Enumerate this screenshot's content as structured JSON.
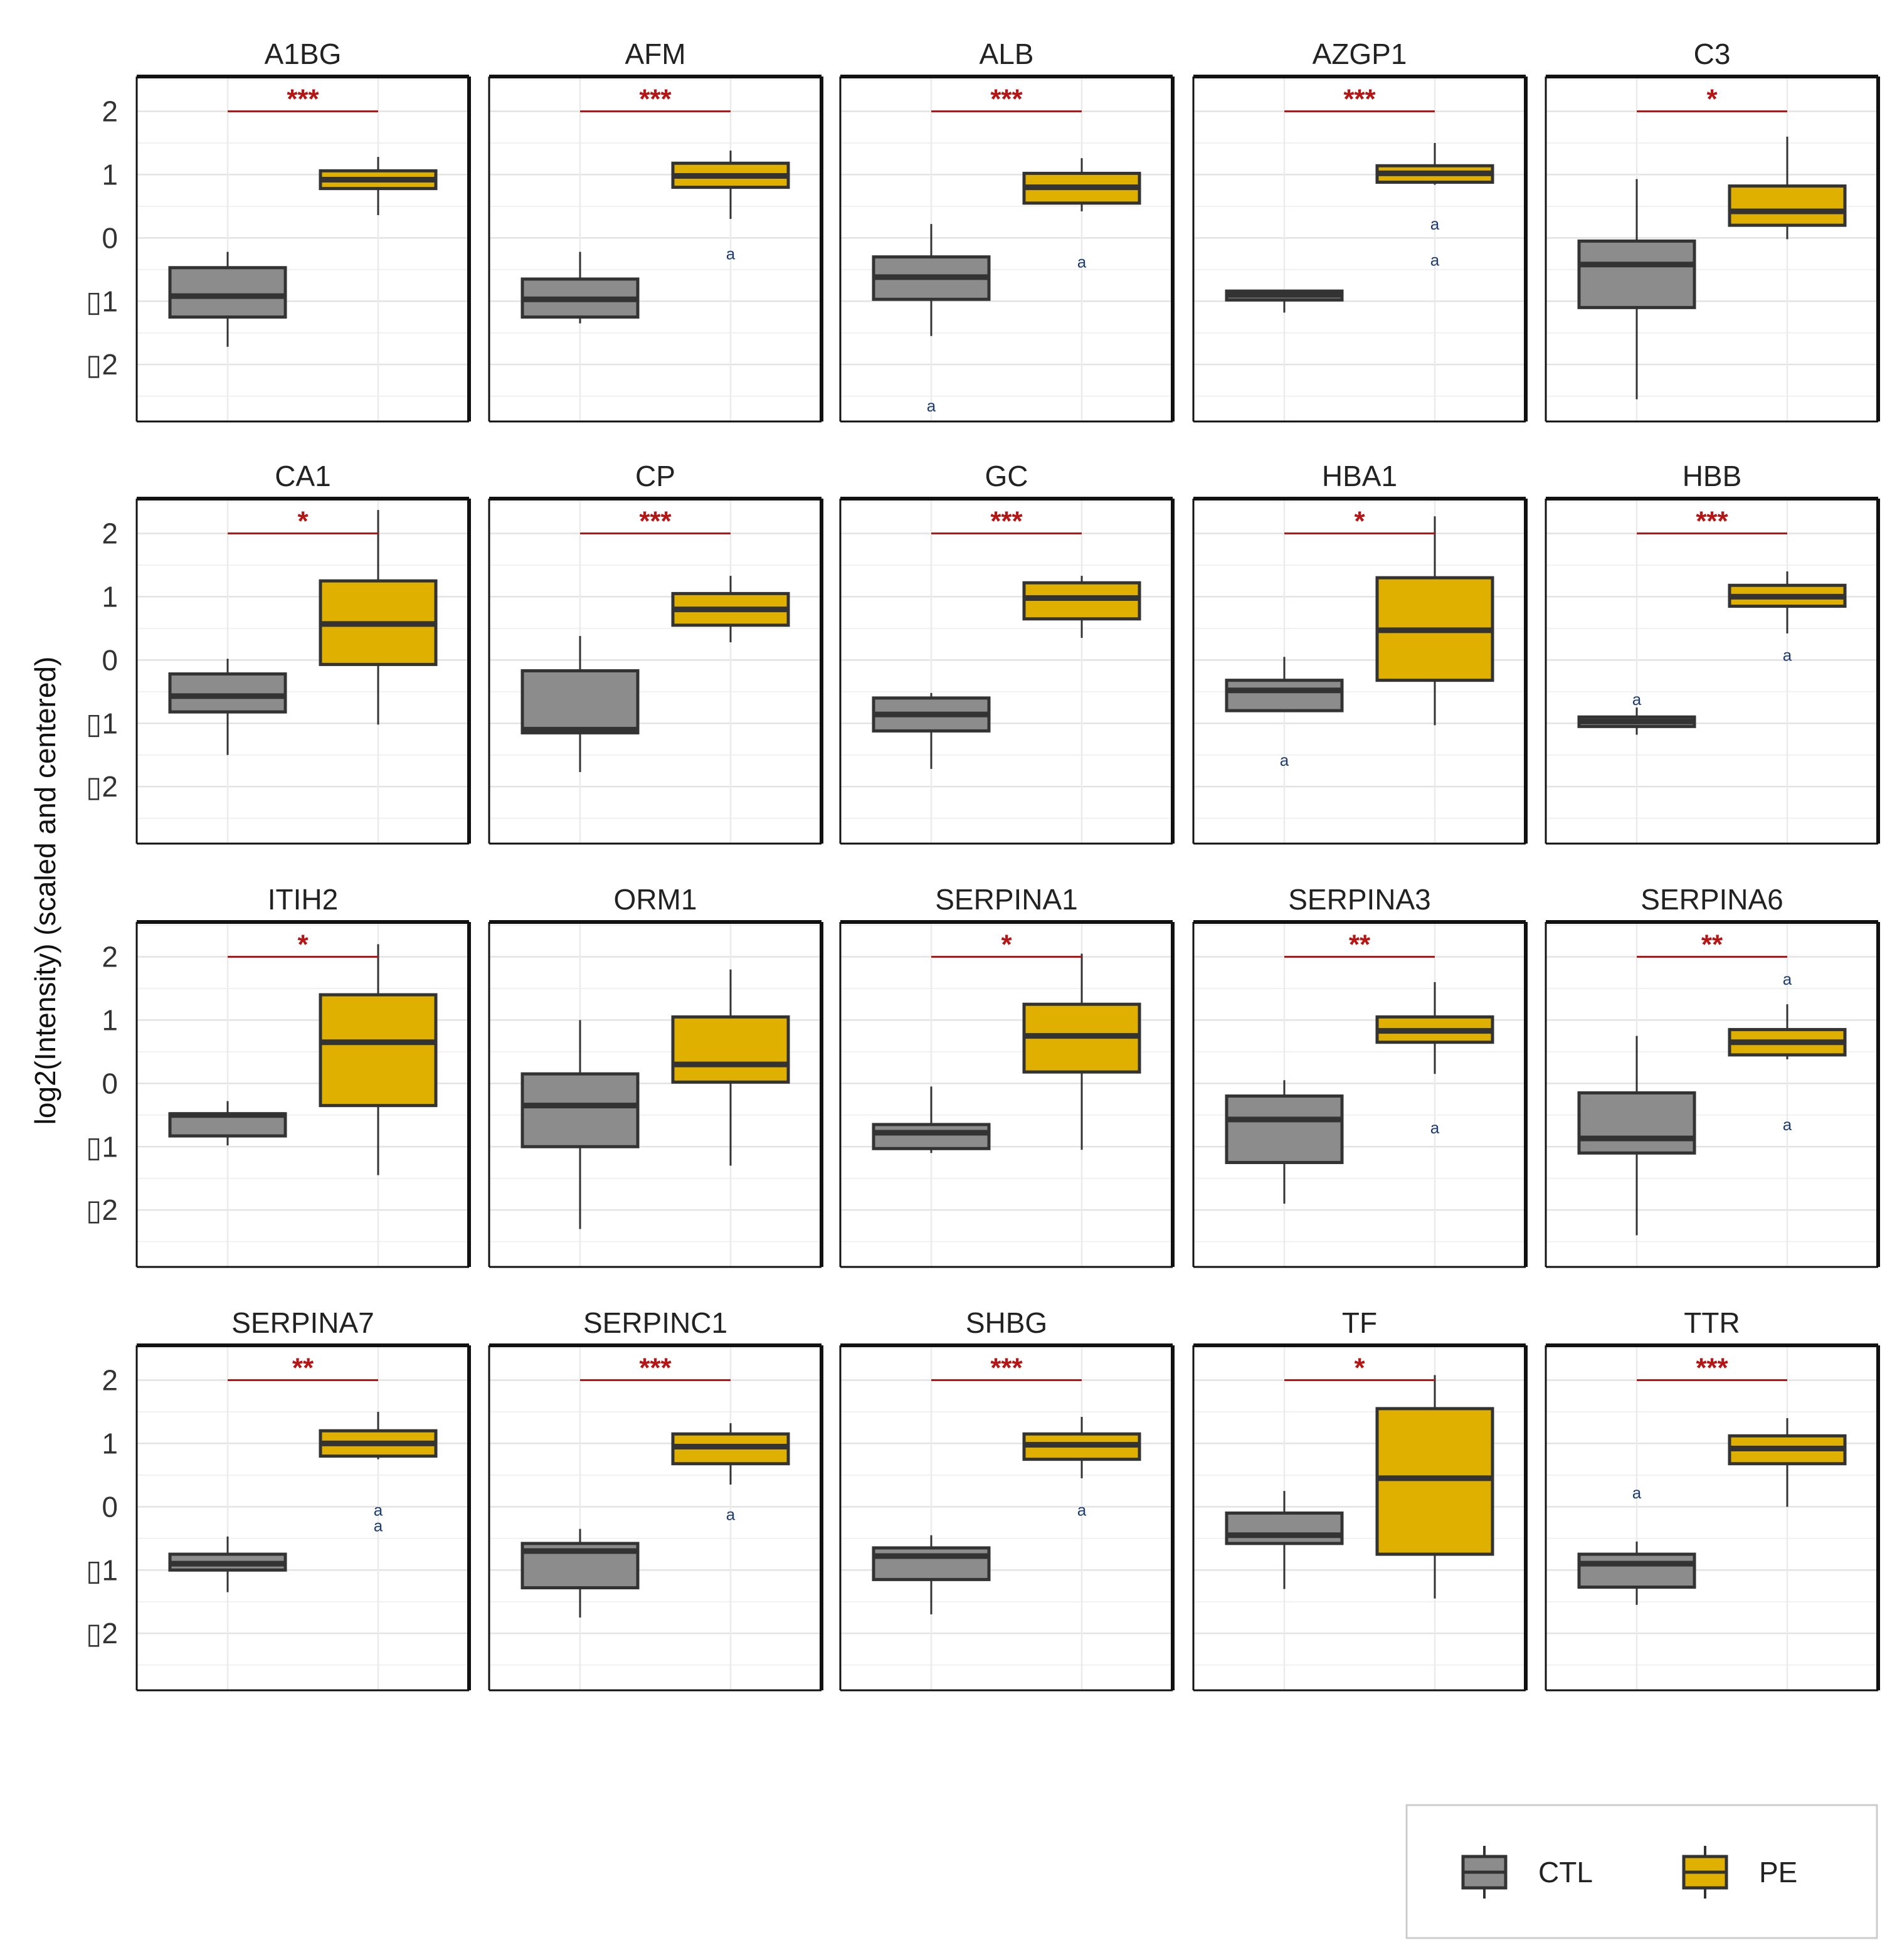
{
  "chart_data": {
    "type": "boxplot",
    "layout": "facet grid 4 rows x 5 columns",
    "ylabel": "log2(Intensity) (scaled and centered)",
    "y_ticks": [
      {
        "value": 2,
        "label": "2"
      },
      {
        "value": 1,
        "label": "1"
      },
      {
        "value": 0,
        "label": "0"
      },
      {
        "value": -1,
        "label": "▯1"
      },
      {
        "value": -2,
        "label": "▯2"
      }
    ],
    "ylim": [
      -2.9,
      2.55
    ],
    "groups": [
      "CTL",
      "PE"
    ],
    "colors": {
      "CTL": "#8c8c8c",
      "PE": "#e0b000",
      "sig": "#b51515",
      "outline": "#333333",
      "outlier": "#1f3d6e"
    },
    "outlier_glyph": "a",
    "legend": {
      "position": "bottom-right",
      "items": [
        {
          "group": "CTL",
          "label": "CTL"
        },
        {
          "group": "PE",
          "label": "PE"
        }
      ]
    },
    "panels": [
      {
        "protein": "A1BG",
        "sig": "***",
        "CTL": {
          "min": -1.72,
          "q1": -1.25,
          "median": -0.92,
          "q3": -0.47,
          "max": -0.22,
          "outliers": []
        },
        "PE": {
          "min": 0.36,
          "q1": 0.78,
          "median": 0.92,
          "q3": 1.06,
          "max": 1.28,
          "outliers": []
        }
      },
      {
        "protein": "AFM",
        "sig": "***",
        "CTL": {
          "min": -1.35,
          "q1": -1.25,
          "median": -0.97,
          "q3": -0.65,
          "max": -0.22,
          "outliers": []
        },
        "PE": {
          "min": 0.3,
          "q1": 0.8,
          "median": 0.98,
          "q3": 1.18,
          "max": 1.38,
          "outliers": [
            -0.25
          ]
        }
      },
      {
        "protein": "ALB",
        "sig": "***",
        "CTL": {
          "min": -1.55,
          "q1": -0.97,
          "median": -0.62,
          "q3": -0.3,
          "max": 0.22,
          "outliers": [
            -2.65
          ]
        },
        "PE": {
          "min": 0.42,
          "q1": 0.55,
          "median": 0.8,
          "q3": 1.02,
          "max": 1.26,
          "outliers": [
            -0.38
          ]
        }
      },
      {
        "protein": "AZGP1",
        "sig": "***",
        "CTL": {
          "min": -1.18,
          "q1": -0.98,
          "median": -0.9,
          "q3": -0.84,
          "max": -0.84,
          "outliers": []
        },
        "PE": {
          "min": 0.84,
          "q1": 0.88,
          "median": 1.02,
          "q3": 1.14,
          "max": 1.5,
          "outliers": [
            0.22,
            -0.35
          ]
        }
      },
      {
        "protein": "C3",
        "sig": "*",
        "CTL": {
          "min": -2.55,
          "q1": -1.1,
          "median": -0.42,
          "q3": -0.05,
          "max": 0.93,
          "outliers": []
        },
        "PE": {
          "min": -0.02,
          "q1": 0.2,
          "median": 0.42,
          "q3": 0.82,
          "max": 1.6,
          "outliers": []
        }
      },
      {
        "protein": "CA1",
        "sig": "*",
        "CTL": {
          "min": -1.5,
          "q1": -0.82,
          "median": -0.57,
          "q3": -0.22,
          "max": 0.02,
          "outliers": []
        },
        "PE": {
          "min": -1.02,
          "q1": -0.07,
          "median": 0.57,
          "q3": 1.25,
          "max": 2.37,
          "outliers": []
        }
      },
      {
        "protein": "CP",
        "sig": "***",
        "CTL": {
          "min": -1.77,
          "q1": -1.15,
          "median": -1.1,
          "q3": -0.17,
          "max": 0.38,
          "outliers": []
        },
        "PE": {
          "min": 0.28,
          "q1": 0.55,
          "median": 0.8,
          "q3": 1.05,
          "max": 1.33,
          "outliers": []
        }
      },
      {
        "protein": "GC",
        "sig": "***",
        "CTL": {
          "min": -1.72,
          "q1": -1.12,
          "median": -0.86,
          "q3": -0.6,
          "max": -0.52,
          "outliers": []
        },
        "PE": {
          "min": 0.35,
          "q1": 0.65,
          "median": 0.98,
          "q3": 1.22,
          "max": 1.33,
          "outliers": []
        }
      },
      {
        "protein": "HBA1",
        "sig": "*",
        "CTL": {
          "min": -0.82,
          "q1": -0.8,
          "median": -0.48,
          "q3": -0.32,
          "max": 0.05,
          "outliers": [
            -1.58
          ]
        },
        "PE": {
          "min": -1.03,
          "q1": -0.32,
          "median": 0.47,
          "q3": 1.3,
          "max": 2.27,
          "outliers": []
        }
      },
      {
        "protein": "HBB",
        "sig": "***",
        "CTL": {
          "min": -1.18,
          "q1": -1.05,
          "median": -0.97,
          "q3": -0.9,
          "max": -0.75,
          "outliers": [
            -0.62
          ]
        },
        "PE": {
          "min": 0.42,
          "q1": 0.85,
          "median": 1.0,
          "q3": 1.18,
          "max": 1.4,
          "outliers": [
            0.08
          ]
        }
      },
      {
        "protein": "ITIH2",
        "sig": "*",
        "CTL": {
          "min": -0.98,
          "q1": -0.83,
          "median": -0.5,
          "q3": -0.48,
          "max": -0.28,
          "outliers": []
        },
        "PE": {
          "min": -1.45,
          "q1": -0.35,
          "median": 0.65,
          "q3": 1.4,
          "max": 2.2,
          "outliers": []
        }
      },
      {
        "protein": "ORM1",
        "sig": "",
        "CTL": {
          "min": -2.3,
          "q1": -1.0,
          "median": -0.35,
          "q3": 0.15,
          "max": 1.0,
          "outliers": []
        },
        "PE": {
          "min": -1.3,
          "q1": 0.02,
          "median": 0.3,
          "q3": 1.05,
          "max": 1.8,
          "outliers": []
        }
      },
      {
        "protein": "SERPINA1",
        "sig": "*",
        "CTL": {
          "min": -1.1,
          "q1": -1.03,
          "median": -0.78,
          "q3": -0.65,
          "max": -0.05,
          "outliers": []
        },
        "PE": {
          "min": -1.05,
          "q1": 0.18,
          "median": 0.75,
          "q3": 1.25,
          "max": 2.05,
          "outliers": []
        }
      },
      {
        "protein": "SERPINA3",
        "sig": "**",
        "CTL": {
          "min": -1.9,
          "q1": -1.25,
          "median": -0.57,
          "q3": -0.2,
          "max": 0.05,
          "outliers": []
        },
        "PE": {
          "min": 0.15,
          "q1": 0.65,
          "median": 0.83,
          "q3": 1.05,
          "max": 1.6,
          "outliers": [
            -0.7
          ]
        }
      },
      {
        "protein": "SERPINA6",
        "sig": "**",
        "CTL": {
          "min": -2.4,
          "q1": -1.1,
          "median": -0.87,
          "q3": -0.15,
          "max": 0.75,
          "outliers": []
        },
        "PE": {
          "min": 0.38,
          "q1": 0.45,
          "median": 0.65,
          "q3": 0.85,
          "max": 1.25,
          "outliers": [
            1.65,
            -0.65
          ]
        }
      },
      {
        "protein": "SERPINA7",
        "sig": "**",
        "CTL": {
          "min": -1.35,
          "q1": -1.0,
          "median": -0.9,
          "q3": -0.75,
          "max": -0.47,
          "outliers": []
        },
        "PE": {
          "min": 0.75,
          "q1": 0.8,
          "median": 1.0,
          "q3": 1.2,
          "max": 1.5,
          "outliers": [
            -0.05,
            -0.3
          ]
        }
      },
      {
        "protein": "SERPINC1",
        "sig": "***",
        "CTL": {
          "min": -1.75,
          "q1": -1.28,
          "median": -0.7,
          "q3": -0.58,
          "max": -0.35,
          "outliers": []
        },
        "PE": {
          "min": 0.35,
          "q1": 0.68,
          "median": 0.95,
          "q3": 1.15,
          "max": 1.32,
          "outliers": [
            -0.12
          ]
        }
      },
      {
        "protein": "SHBG",
        "sig": "***",
        "CTL": {
          "min": -1.7,
          "q1": -1.15,
          "median": -0.78,
          "q3": -0.65,
          "max": -0.45,
          "outliers": []
        },
        "PE": {
          "min": 0.45,
          "q1": 0.75,
          "median": 0.98,
          "q3": 1.15,
          "max": 1.42,
          "outliers": [
            -0.05
          ]
        }
      },
      {
        "protein": "TF",
        "sig": "*",
        "CTL": {
          "min": -1.3,
          "q1": -0.58,
          "median": -0.45,
          "q3": -0.1,
          "max": 0.25,
          "outliers": []
        },
        "PE": {
          "min": -1.45,
          "q1": -0.75,
          "median": 0.45,
          "q3": 1.55,
          "max": 2.08,
          "outliers": []
        }
      },
      {
        "protein": "TTR",
        "sig": "***",
        "CTL": {
          "min": -1.55,
          "q1": -1.27,
          "median": -0.9,
          "q3": -0.75,
          "max": -0.55,
          "outliers": [
            0.22
          ]
        },
        "PE": {
          "min": 0.0,
          "q1": 0.68,
          "median": 0.92,
          "q3": 1.12,
          "max": 1.4,
          "outliers": []
        }
      }
    ]
  }
}
